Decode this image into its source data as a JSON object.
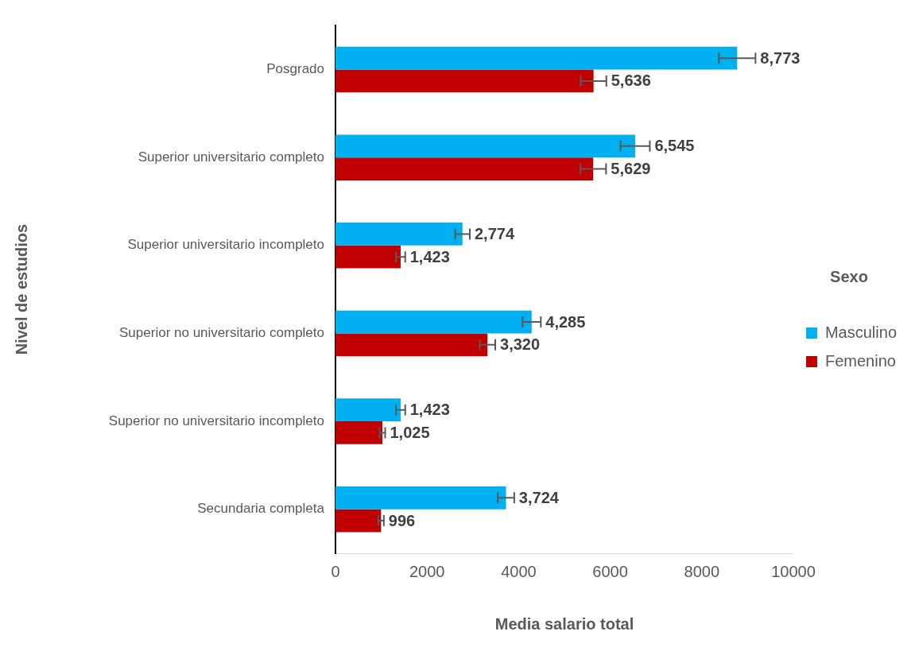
{
  "chart_data": {
    "type": "bar",
    "orientation": "horizontal",
    "xlabel": "Media salario total",
    "ylabel": "Nivel de estudios",
    "legend_title": "Sexo",
    "categories": [
      "Posgrado",
      "Superior universitario completo",
      "Superior universitario incompleto",
      "Superior no universitario completo",
      "Superior no universitario incompleto",
      "Secundaria completa"
    ],
    "series": [
      {
        "name": "Masculino",
        "color": "#00b0f0",
        "values": [
          8773,
          6545,
          2774,
          4285,
          1423,
          3724
        ],
        "errors": [
          400,
          320,
          160,
          200,
          100,
          180
        ],
        "value_labels": [
          "8,773",
          "6,545",
          "2,774",
          "4,285",
          "1,423",
          "3,724"
        ]
      },
      {
        "name": "Femenino",
        "color": "#c00000",
        "values": [
          5636,
          5629,
          1423,
          3320,
          1025,
          996
        ],
        "errors": [
          280,
          280,
          100,
          170,
          60,
          60
        ],
        "value_labels": [
          "5,636",
          "5,629",
          "1,423",
          "3,320",
          "1,025",
          "996"
        ]
      }
    ],
    "xlim": [
      0,
      10000
    ],
    "xticks": [
      0,
      2000,
      4000,
      6000,
      8000,
      10000
    ],
    "grid": false,
    "legend": "right"
  }
}
